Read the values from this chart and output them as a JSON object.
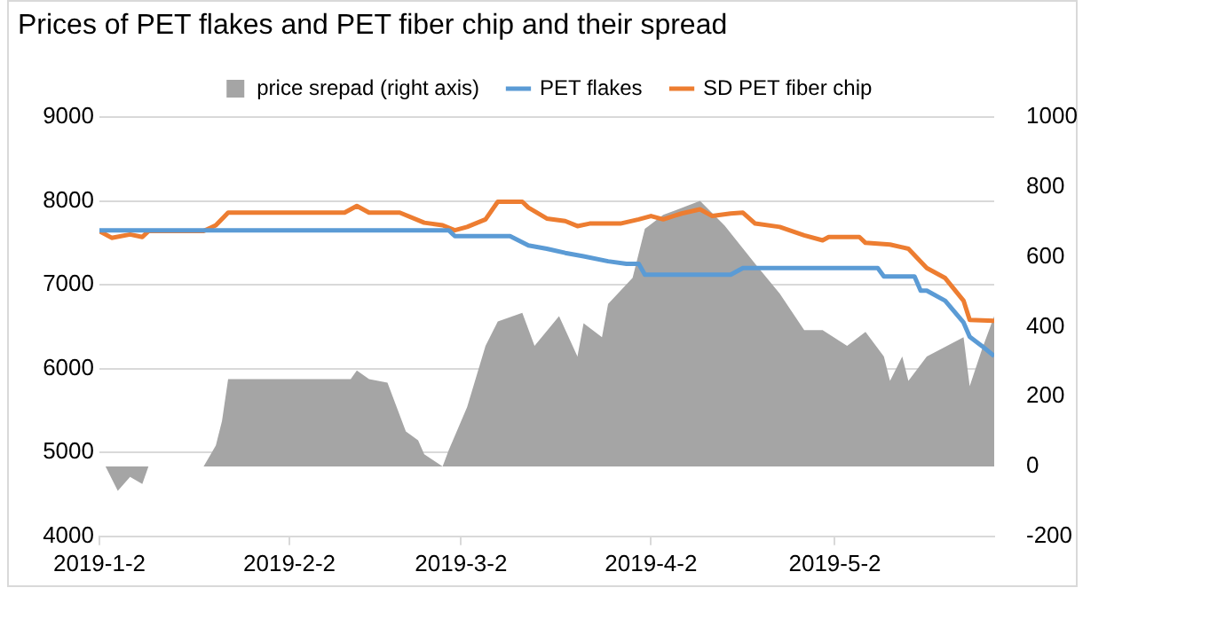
{
  "chart_data": {
    "type": "line",
    "title": "Prices of PET flakes and PET fiber chip and their spread",
    "legend": "top",
    "grid": "y",
    "line_style": "solid",
    "marker": "none",
    "xlim": [
      "2019-01-02",
      "2019-05-28"
    ],
    "xticks": [
      {
        "value": "2019-01-02",
        "label": "2019-1-2"
      },
      {
        "value": "2019-02-02",
        "label": "2019-2-2"
      },
      {
        "value": "2019-03-02",
        "label": "2019-3-2"
      },
      {
        "value": "2019-04-02",
        "label": "2019-4-2"
      },
      {
        "value": "2019-05-02",
        "label": "2019-5-2"
      }
    ],
    "ylim": [
      4000,
      9000
    ],
    "yticks": [
      4000,
      5000,
      6000,
      7000,
      8000,
      9000
    ],
    "y2lim": [
      -200,
      1000
    ],
    "y2ticks": [
      -200,
      0,
      200,
      400,
      600,
      800,
      1000
    ],
    "series": [
      {
        "name": "price srepad (right axis)",
        "type": "area",
        "axis": "y2",
        "color": "#a5a5a5",
        "x": [
          "2019-01-02",
          "2019-01-03",
          "2019-01-05",
          "2019-01-07",
          "2019-01-09",
          "2019-01-10",
          "2019-01-19",
          "2019-01-21",
          "2019-01-22",
          "2019-01-23",
          "2019-02-12",
          "2019-02-13",
          "2019-02-15",
          "2019-02-18",
          "2019-02-21",
          "2019-02-23",
          "2019-02-24",
          "2019-02-27",
          "2019-02-28",
          "2019-03-03",
          "2019-03-06",
          "2019-03-08",
          "2019-03-12",
          "2019-03-14",
          "2019-03-18",
          "2019-03-21",
          "2019-03-22",
          "2019-03-25",
          "2019-03-26",
          "2019-03-30",
          "2019-04-01",
          "2019-04-04",
          "2019-04-10",
          "2019-04-14",
          "2019-04-19",
          "2019-04-23",
          "2019-04-27",
          "2019-04-30",
          "2019-05-04",
          "2019-05-07",
          "2019-05-10",
          "2019-05-11",
          "2019-05-13",
          "2019-05-14",
          "2019-05-17",
          "2019-05-23",
          "2019-05-24",
          "2019-05-26",
          "2019-05-28"
        ],
        "values": [
          0,
          0,
          -70,
          -30,
          -50,
          0,
          0,
          60,
          130,
          250,
          250,
          275,
          250,
          240,
          100,
          75,
          35,
          0,
          47,
          170,
          345,
          415,
          440,
          345,
          430,
          315,
          410,
          370,
          465,
          540,
          680,
          720,
          760,
          690,
          580,
          495,
          390,
          390,
          345,
          385,
          315,
          245,
          315,
          245,
          315,
          370,
          230,
          335,
          430
        ]
      },
      {
        "name": "PET flakes",
        "type": "line",
        "axis": "y",
        "color": "#5b9bd5",
        "x": [
          "2019-01-02",
          "2019-02-28",
          "2019-03-01",
          "2019-03-10",
          "2019-03-13",
          "2019-03-16",
          "2019-03-19",
          "2019-03-22",
          "2019-03-26",
          "2019-03-29",
          "2019-03-31",
          "2019-04-01",
          "2019-04-15",
          "2019-04-17",
          "2019-05-09",
          "2019-05-10",
          "2019-05-15",
          "2019-05-16",
          "2019-05-17",
          "2019-05-20",
          "2019-05-23",
          "2019-05-24",
          "2019-05-26",
          "2019-05-28"
        ],
        "values": [
          7650,
          7650,
          7580,
          7580,
          7470,
          7430,
          7380,
          7340,
          7280,
          7250,
          7250,
          7120,
          7120,
          7200,
          7200,
          7100,
          7100,
          6930,
          6930,
          6810,
          6550,
          6380,
          6270,
          6150
        ]
      },
      {
        "name": "SD PET fiber chip",
        "type": "line",
        "axis": "y",
        "color": "#ed7d31",
        "x": [
          "2019-01-02",
          "2019-01-04",
          "2019-01-07",
          "2019-01-09",
          "2019-01-10",
          "2019-01-19",
          "2019-01-21",
          "2019-01-23",
          "2019-02-11",
          "2019-02-13",
          "2019-02-15",
          "2019-02-20",
          "2019-02-24",
          "2019-02-27",
          "2019-03-01",
          "2019-03-03",
          "2019-03-06",
          "2019-03-08",
          "2019-03-12",
          "2019-03-13",
          "2019-03-16",
          "2019-03-19",
          "2019-03-21",
          "2019-03-23",
          "2019-03-28",
          "2019-03-31",
          "2019-04-02",
          "2019-04-04",
          "2019-04-07",
          "2019-04-10",
          "2019-04-12",
          "2019-04-15",
          "2019-04-17",
          "2019-04-19",
          "2019-04-23",
          "2019-04-27",
          "2019-04-30",
          "2019-05-01",
          "2019-05-06",
          "2019-05-07",
          "2019-05-11",
          "2019-05-14",
          "2019-05-17",
          "2019-05-20",
          "2019-05-23",
          "2019-05-24",
          "2019-05-28"
        ],
        "values": [
          7640,
          7560,
          7600,
          7570,
          7640,
          7640,
          7710,
          7860,
          7860,
          7940,
          7860,
          7860,
          7740,
          7710,
          7650,
          7690,
          7780,
          7990,
          7990,
          7920,
          7790,
          7760,
          7700,
          7730,
          7730,
          7780,
          7820,
          7780,
          7850,
          7900,
          7820,
          7850,
          7860,
          7730,
          7690,
          7590,
          7530,
          7570,
          7570,
          7500,
          7480,
          7430,
          7200,
          7080,
          6810,
          6580,
          6570
        ]
      }
    ]
  }
}
